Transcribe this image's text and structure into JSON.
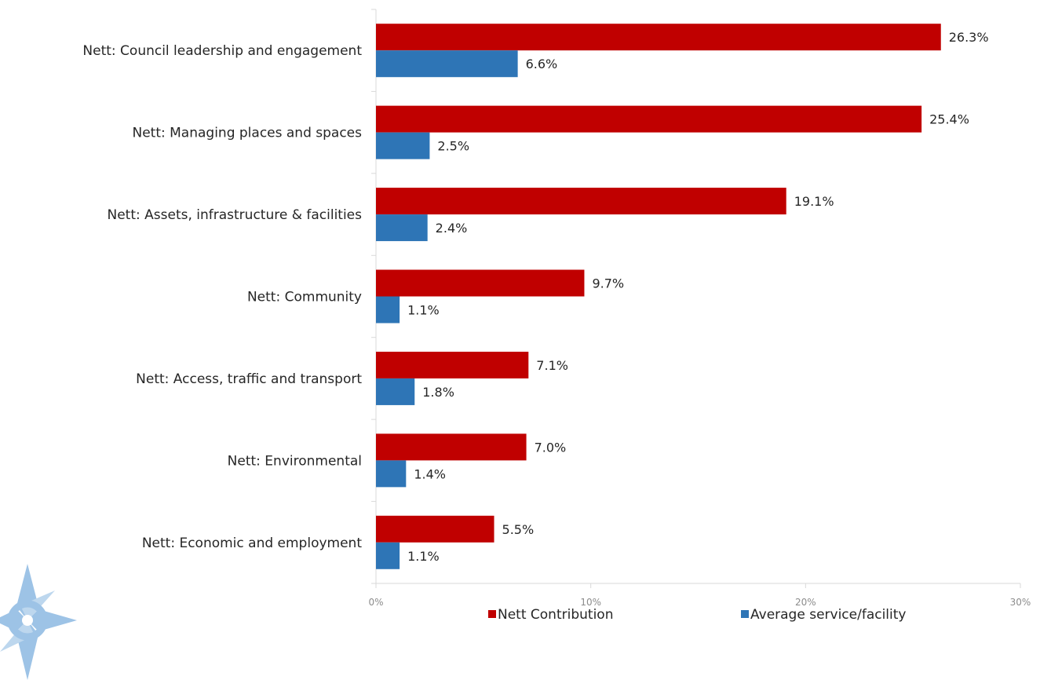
{
  "chart_data": {
    "type": "bar",
    "orientation": "horizontal",
    "categories": [
      "Nett: Council leadership and engagement",
      "Nett: Managing places and spaces",
      "Nett: Assets, infrastructure & facilities",
      "Nett: Community",
      "Nett: Access, traffic and transport",
      "Nett: Environmental",
      "Nett: Economic and employment"
    ],
    "series": [
      {
        "name": "Nett Contribution",
        "color": "#c00000",
        "values": [
          26.3,
          25.4,
          19.1,
          9.7,
          7.1,
          7.0,
          5.5
        ],
        "labels": [
          "26.3%",
          "25.4%",
          "19.1%",
          "9.7%",
          "7.1%",
          "7.0%",
          "5.5%"
        ]
      },
      {
        "name": "Average service/facility",
        "color": "#2e75b6",
        "values": [
          6.6,
          2.5,
          2.4,
          1.1,
          1.8,
          1.4,
          1.1
        ],
        "labels": [
          "6.6%",
          "2.5%",
          "2.4%",
          "1.1%",
          "1.8%",
          "1.4%",
          "1.1%"
        ]
      }
    ],
    "xlim": [
      0,
      30
    ],
    "xticks": [
      0,
      10,
      20,
      30
    ],
    "xtick_labels": [
      "0%",
      "10%",
      "20%",
      "30%"
    ],
    "grid": false,
    "legend_position": "bottom"
  },
  "logo": {
    "name": "compass-logo-icon",
    "color": "#9dc3e6"
  }
}
